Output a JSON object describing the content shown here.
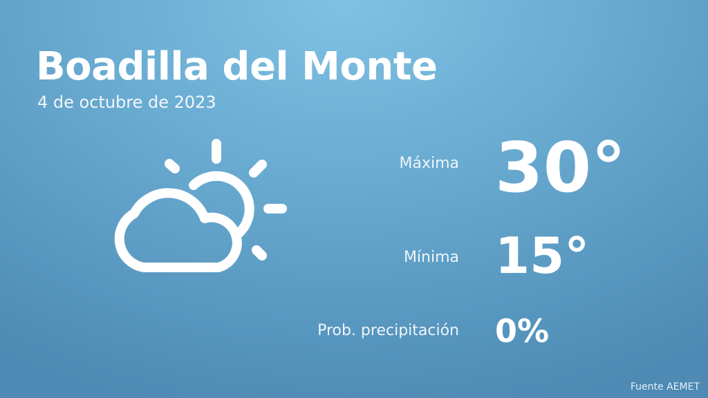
{
  "header": {
    "title": "Boadilla del Monte",
    "date": "4 de octubre de 2023"
  },
  "weather": {
    "icon": "partly-cloudy-icon",
    "max_label": "Máxima",
    "max_value": "30°",
    "min_label": "Mínima",
    "min_value": "15°",
    "prob_label": "Prob. precipitación",
    "prob_value": "0%"
  },
  "footer": {
    "source": "Fuente AEMET"
  }
}
